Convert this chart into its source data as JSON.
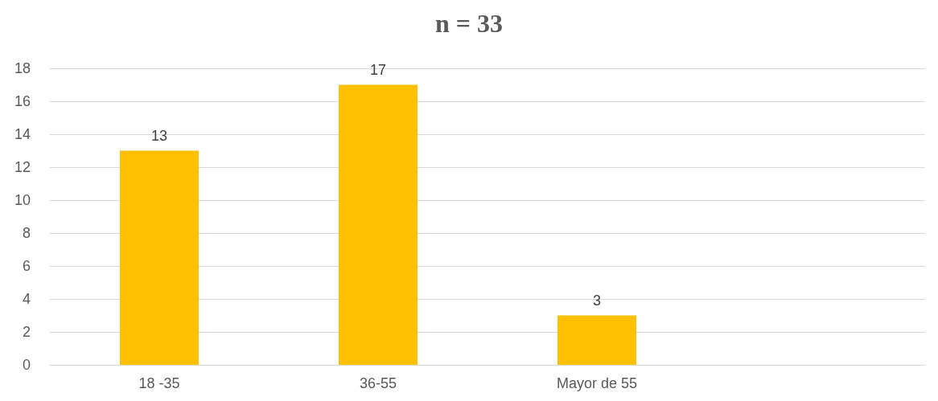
{
  "chart_data": {
    "type": "bar",
    "title": "n = 33",
    "categories": [
      "18 -35",
      "36-55",
      "Mayor de 55",
      null
    ],
    "values": [
      13,
      17,
      3,
      null
    ],
    "color": "#ffc000",
    "ylim": [
      0,
      18
    ],
    "yticks": [
      0,
      2,
      4,
      6,
      8,
      10,
      12,
      14,
      16,
      18
    ],
    "grid": "y",
    "data_labels": true
  }
}
